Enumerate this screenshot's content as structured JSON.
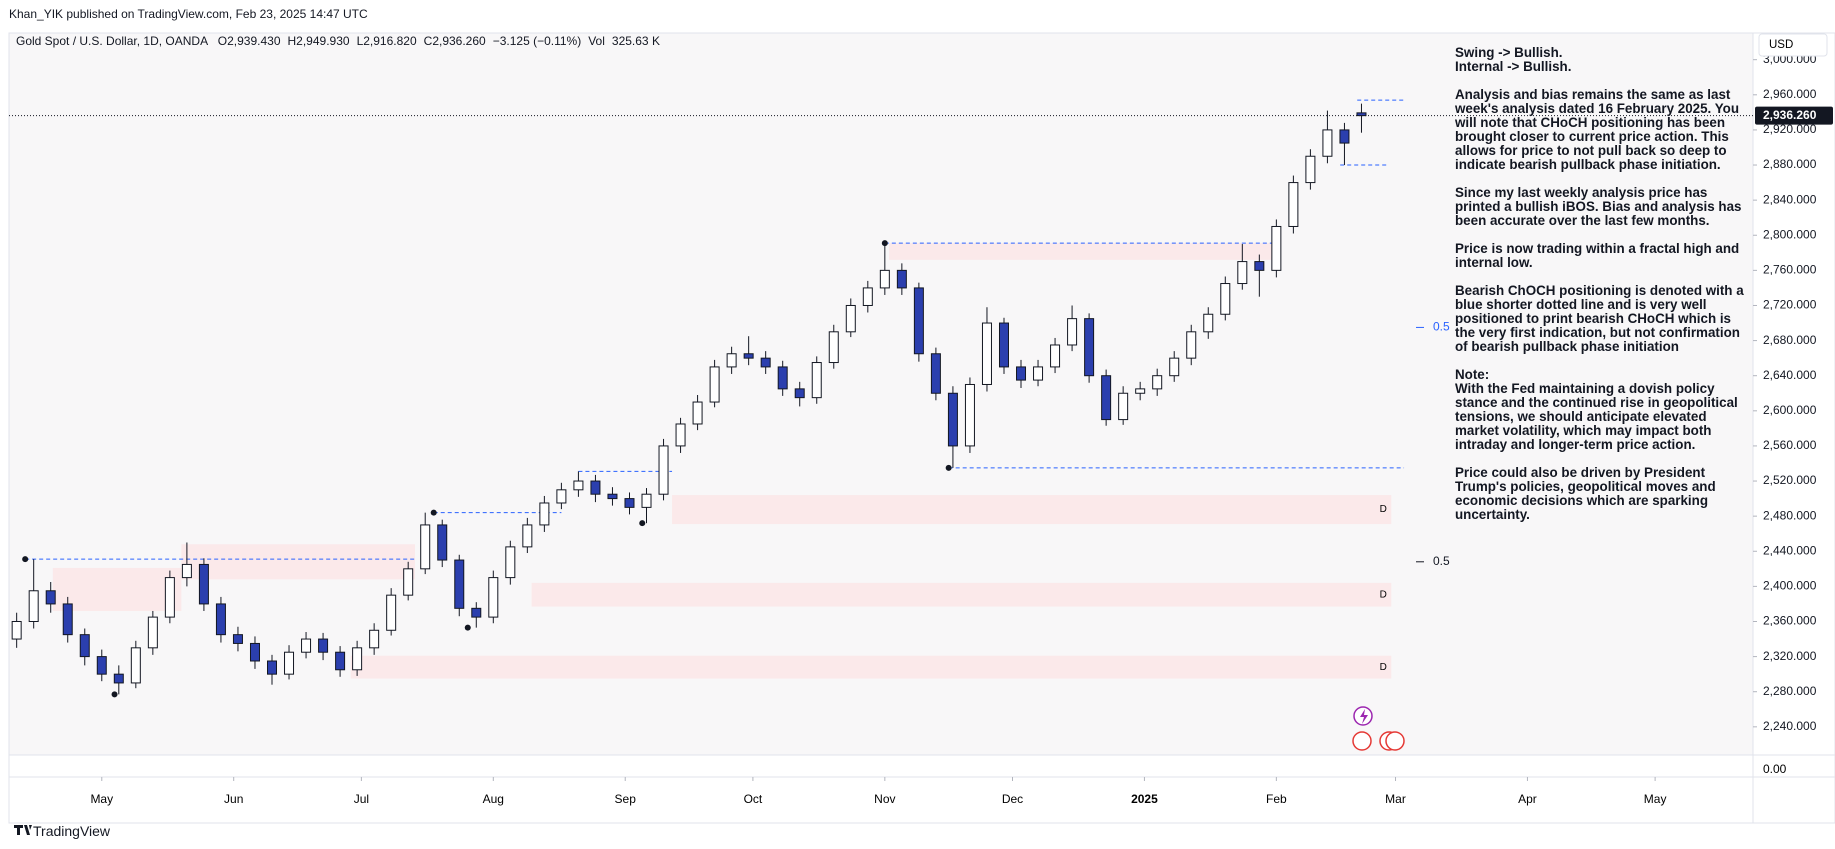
{
  "header": {
    "publisher": "Khan_YIK published on TradingView.com, Feb 23, 2025 14:47 UTC",
    "footer": "TradingView"
  },
  "chart_data": {
    "type": "candlestick",
    "title": "Gold Spot / U.S. Dollar, 1D, OANDA",
    "ohlc_header": [
      "O",
      "2,939.430",
      "H",
      "2,949.930",
      "L",
      "2,916.820",
      "C",
      "2,936.260",
      "−3.125 (−0.11%)",
      "Vol",
      "325.63 K"
    ],
    "currency": "USD",
    "up_color": "#ffffff",
    "down_color": "#2b3fae",
    "candles": [
      [
        -20,
        2340,
        2370,
        2330,
        2360
      ],
      [
        -16,
        2360,
        2431,
        2352,
        2395
      ],
      [
        -12,
        2395,
        2405,
        2370,
        2380
      ],
      [
        -8,
        2380,
        2388,
        2336,
        2345
      ],
      [
        -4,
        2345,
        2352,
        2310,
        2320
      ],
      [
        0,
        2320,
        2328,
        2292,
        2300
      ],
      [
        4,
        2300,
        2310,
        2277,
        2290
      ],
      [
        8,
        2290,
        2338,
        2284,
        2330
      ],
      [
        12,
        2330,
        2372,
        2322,
        2365
      ],
      [
        16,
        2365,
        2418,
        2358,
        2410
      ],
      [
        20,
        2410,
        2450,
        2400,
        2425
      ],
      [
        24,
        2425,
        2432,
        2372,
        2380
      ],
      [
        28,
        2380,
        2388,
        2336,
        2345
      ],
      [
        32,
        2345,
        2354,
        2326,
        2335
      ],
      [
        36,
        2335,
        2343,
        2306,
        2315
      ],
      [
        40,
        2315,
        2322,
        2288,
        2300
      ],
      [
        44,
        2300,
        2333,
        2294,
        2325
      ],
      [
        48,
        2325,
        2348,
        2318,
        2340
      ],
      [
        52,
        2340,
        2347,
        2316,
        2325
      ],
      [
        56,
        2325,
        2332,
        2297,
        2305
      ],
      [
        60,
        2305,
        2338,
        2298,
        2330
      ],
      [
        64,
        2330,
        2358,
        2322,
        2350
      ],
      [
        68,
        2350,
        2398,
        2344,
        2390
      ],
      [
        72,
        2390,
        2428,
        2384,
        2420
      ],
      [
        76,
        2420,
        2484,
        2414,
        2470
      ],
      [
        80,
        2470,
        2476,
        2422,
        2430
      ],
      [
        84,
        2430,
        2436,
        2366,
        2375
      ],
      [
        88,
        2375,
        2382,
        2353,
        2365
      ],
      [
        92,
        2365,
        2418,
        2358,
        2410
      ],
      [
        96,
        2410,
        2452,
        2402,
        2445
      ],
      [
        100,
        2445,
        2478,
        2438,
        2470
      ],
      [
        104,
        2470,
        2503,
        2462,
        2495
      ],
      [
        108,
        2495,
        2518,
        2488,
        2510
      ],
      [
        112,
        2510,
        2531,
        2502,
        2520
      ],
      [
        116,
        2520,
        2527,
        2496,
        2505
      ],
      [
        120,
        2505,
        2513,
        2492,
        2500
      ],
      [
        124,
        2500,
        2507,
        2482,
        2490
      ],
      [
        128,
        2490,
        2512,
        2472,
        2505
      ],
      [
        132,
        2505,
        2568,
        2498,
        2560
      ],
      [
        136,
        2560,
        2592,
        2552,
        2585
      ],
      [
        140,
        2585,
        2618,
        2578,
        2610
      ],
      [
        144,
        2610,
        2658,
        2604,
        2650
      ],
      [
        148,
        2650,
        2673,
        2642,
        2665
      ],
      [
        152,
        2665,
        2685,
        2652,
        2660
      ],
      [
        156,
        2660,
        2668,
        2642,
        2650
      ],
      [
        160,
        2650,
        2657,
        2617,
        2625
      ],
      [
        164,
        2625,
        2633,
        2605,
        2615
      ],
      [
        168,
        2615,
        2662,
        2608,
        2655
      ],
      [
        172,
        2655,
        2698,
        2648,
        2690
      ],
      [
        176,
        2690,
        2728,
        2684,
        2720
      ],
      [
        180,
        2720,
        2748,
        2712,
        2740
      ],
      [
        184,
        2740,
        2791,
        2732,
        2760
      ],
      [
        188,
        2760,
        2768,
        2732,
        2740
      ],
      [
        192,
        2740,
        2746,
        2656,
        2665
      ],
      [
        196,
        2665,
        2672,
        2612,
        2620
      ],
      [
        200,
        2620,
        2628,
        2535,
        2560
      ],
      [
        204,
        2560,
        2638,
        2552,
        2630
      ],
      [
        208,
        2630,
        2718,
        2622,
        2700
      ],
      [
        212,
        2700,
        2706,
        2642,
        2650
      ],
      [
        216,
        2650,
        2658,
        2626,
        2635
      ],
      [
        220,
        2635,
        2658,
        2628,
        2650
      ],
      [
        224,
        2650,
        2683,
        2643,
        2675
      ],
      [
        228,
        2675,
        2720,
        2668,
        2705
      ],
      [
        232,
        2705,
        2711,
        2632,
        2640
      ],
      [
        236,
        2640,
        2647,
        2583,
        2590
      ],
      [
        240,
        2590,
        2628,
        2584,
        2620
      ],
      [
        244,
        2620,
        2633,
        2612,
        2625
      ],
      [
        248,
        2625,
        2648,
        2617,
        2640
      ],
      [
        252,
        2640,
        2668,
        2633,
        2660
      ],
      [
        256,
        2660,
        2698,
        2652,
        2690
      ],
      [
        260,
        2690,
        2718,
        2682,
        2710
      ],
      [
        264,
        2710,
        2753,
        2703,
        2745
      ],
      [
        268,
        2745,
        2790,
        2738,
        2770
      ],
      [
        272,
        2770,
        2778,
        2730,
        2760
      ],
      [
        276,
        2760,
        2818,
        2752,
        2810
      ],
      [
        280,
        2810,
        2868,
        2802,
        2860
      ],
      [
        284,
        2860,
        2898,
        2852,
        2890
      ],
      [
        288,
        2890,
        2942,
        2882,
        2920
      ],
      [
        292,
        2920,
        2928,
        2880,
        2905
      ],
      [
        296,
        2939.43,
        2949.93,
        2916.82,
        2936.26
      ]
    ],
    "last_price": {
      "value": 2936.26,
      "label": "2,936.260"
    },
    "zones": [
      {
        "x": [
          18.7,
          73.6
        ],
        "y": [
          2408,
          2448
        ]
      },
      {
        "x": [
          -11.5,
          18.7
        ],
        "y": [
          2372,
          2421
        ]
      },
      {
        "x": [
          134,
          303
        ],
        "y": [
          2471,
          2504
        ],
        "label": "D"
      },
      {
        "x": [
          101,
          303
        ],
        "y": [
          2377,
          2404
        ],
        "label": "D"
      },
      {
        "x": [
          58.5,
          303
        ],
        "y": [
          2295,
          2321
        ],
        "label": "D"
      },
      {
        "x": [
          185,
          275.5
        ],
        "y": [
          2772,
          2791
        ]
      }
    ],
    "zone_color": "#fbe9ea",
    "levels": [
      {
        "price": 2431,
        "x": [
          -18,
          74
        ]
      },
      {
        "price": 2484,
        "x": [
          78,
          108
        ]
      },
      {
        "price": 2531,
        "x": [
          112,
          134
        ]
      },
      {
        "price": 2791,
        "x": [
          184,
          275
        ]
      },
      {
        "price": 2535,
        "x": [
          199,
          306
        ]
      },
      {
        "price": 2954,
        "x": [
          295,
          306
        ]
      },
      {
        "price": 2880,
        "x": [
          291,
          302
        ]
      }
    ],
    "level_color": "#2962ff",
    "swing_points": [
      [
        -18,
        2431
      ],
      [
        3,
        2277
      ],
      [
        78,
        2484
      ],
      [
        86,
        2353
      ],
      [
        127,
        2472
      ],
      [
        184,
        2791
      ],
      [
        199,
        2535
      ]
    ],
    "fib_labels": [
      {
        "price": 2695,
        "label": "0.5",
        "color": "#2962ff"
      },
      {
        "price": 2428,
        "label": "0.5",
        "color": "#131722"
      }
    ],
    "xlim": [
      -21.8,
      388
    ],
    "xticks": [
      {
        "value": 0,
        "label": "May"
      },
      {
        "value": 31,
        "label": "Jun"
      },
      {
        "value": 61,
        "label": "Jul"
      },
      {
        "value": 92,
        "label": "Aug"
      },
      {
        "value": 123,
        "label": "Sep"
      },
      {
        "value": 153,
        "label": "Oct"
      },
      {
        "value": 184,
        "label": "Nov"
      },
      {
        "value": 214,
        "label": "Dec"
      },
      {
        "value": 245,
        "label": "2025"
      },
      {
        "value": 276,
        "label": "Feb"
      },
      {
        "value": 304,
        "label": "Mar"
      },
      {
        "value": 335,
        "label": "Apr"
      },
      {
        "value": 365,
        "label": "May"
      }
    ],
    "ylim": [
      2219.3,
      3030.4
    ],
    "yticks": [
      {
        "value": 2240,
        "label": "2,240.000"
      },
      {
        "value": 2280,
        "label": "2,280.000"
      },
      {
        "value": 2320,
        "label": "2,320.000"
      },
      {
        "value": 2360,
        "label": "2,360.000"
      },
      {
        "value": 2400,
        "label": "2,400.000"
      },
      {
        "value": 2440,
        "label": "2,440.000"
      },
      {
        "value": 2480,
        "label": "2,480.000"
      },
      {
        "value": 2520,
        "label": "2,520.000"
      },
      {
        "value": 2560,
        "label": "2,560.000"
      },
      {
        "value": 2600,
        "label": "2,600.000"
      },
      {
        "value": 2640,
        "label": "2,640.000"
      },
      {
        "value": 2680,
        "label": "2,680.000"
      },
      {
        "value": 2720,
        "label": "2,720.000"
      },
      {
        "value": 2760,
        "label": "2,760.000"
      },
      {
        "value": 2800,
        "label": "2,800.000"
      },
      {
        "value": 2840,
        "label": "2,840.000"
      },
      {
        "value": 2880,
        "label": "2,880.000"
      },
      {
        "value": 2920,
        "label": "2,920.000"
      },
      {
        "value": 2960,
        "label": "2,960.000"
      },
      {
        "value": 3000,
        "label": "3,000.000"
      }
    ],
    "volume_axis_label": "0.00",
    "grid": false,
    "annotation": [
      "Swing -> Bullish.\nInternal -> Bullish.",
      "Analysis and bias remains the same as last week's analysis dated 16 February 2025. You will note that CHoCH positioning has been brought closer to current price action. This allows for price to not pull back so deep to indicate bearish pullback phase initiation.",
      "Since my last weekly analysis price has printed a bullish iBOS. Bias and analysis has been accurate over the last few months.",
      "Price is now trading within a fractal high and internal low.",
      "Bearish ChOCH positioning is denoted with a blue shorter dotted line and is very well positioned to print bearish CHoCH which is the very first indication, but not confirmation of bearish pullback phase initiation",
      "Note:\nWith the Fed maintaining a dovish policy stance and the continued rise in geopolitical tensions, we should anticipate elevated market volatility, which may impact both intraday and longer-term price action.",
      "Price could also be driven by President Trump's policies, geopolitical moves and economic decisions which are sparking uncertainty."
    ]
  }
}
